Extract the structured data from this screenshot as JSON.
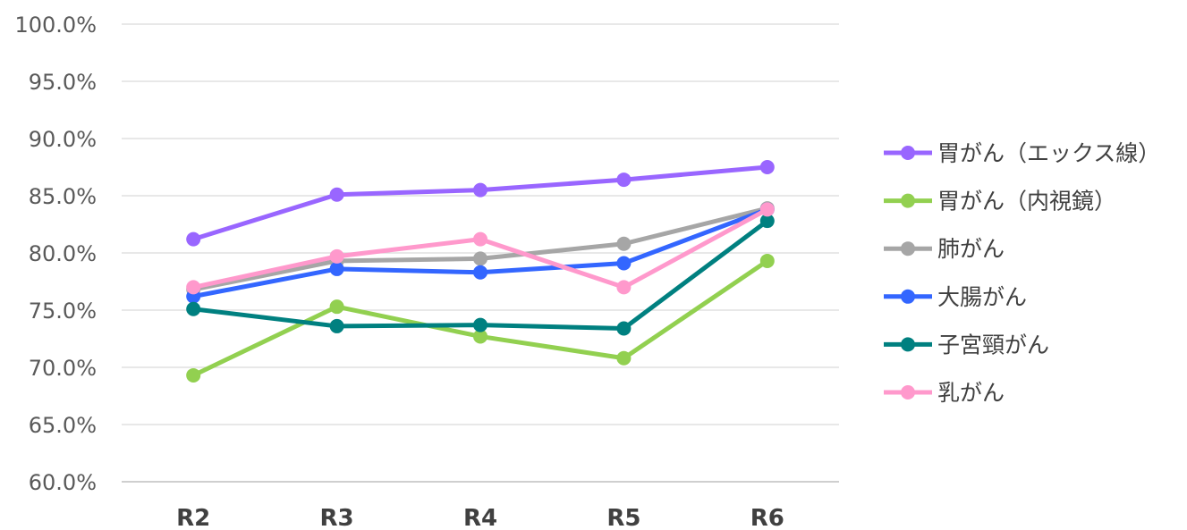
{
  "chart_data": {
    "type": "line",
    "title": "",
    "xlabel": "",
    "ylabel": "",
    "categories": [
      "R2",
      "R3",
      "R4",
      "R5",
      "R6"
    ],
    "ylim": [
      60,
      100
    ],
    "ytick_step": 5,
    "y_tick_labels": [
      "60.0%",
      "65.0%",
      "70.0%",
      "75.0%",
      "80.0%",
      "85.0%",
      "90.0%",
      "95.0%",
      "100.0%"
    ],
    "grid": true,
    "legend_position": "right",
    "series": [
      {
        "name": "胃がん（エックス線）",
        "color": "#9966FF",
        "values": [
          81.2,
          85.1,
          85.5,
          86.4,
          87.5
        ]
      },
      {
        "name": "胃がん（内視鏡）",
        "color": "#92D050",
        "values": [
          69.3,
          75.3,
          72.7,
          70.8,
          79.3
        ]
      },
      {
        "name": "肺がん",
        "color": "#A6A6A6",
        "values": [
          76.8,
          79.3,
          79.5,
          80.8,
          83.9
        ]
      },
      {
        "name": "大腸がん",
        "color": "#3366FF",
        "values": [
          76.2,
          78.6,
          78.3,
          79.1,
          83.8
        ]
      },
      {
        "name": "子宮頸がん",
        "color": "#008080",
        "values": [
          75.1,
          73.6,
          73.7,
          73.4,
          82.8
        ]
      },
      {
        "name": "乳がん",
        "color": "#FF99CC",
        "values": [
          77.0,
          79.7,
          81.2,
          77.0,
          83.8
        ]
      }
    ]
  }
}
